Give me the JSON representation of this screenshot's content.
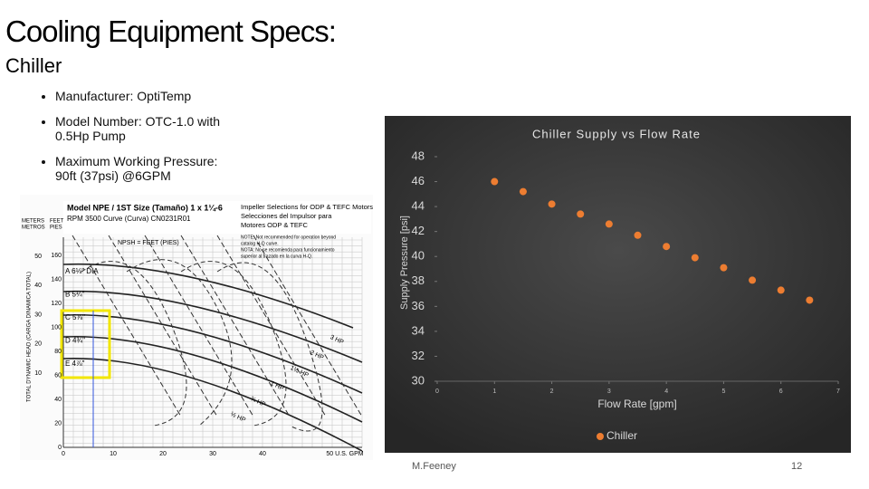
{
  "header": {
    "title": "Cooling Equipment Specs:",
    "subtitle": "Chiller"
  },
  "bullets": [
    "Manufacturer: OptiTemp",
    "Model Number: OTC-1.0 with 0.5Hp Pump",
    "Maximum Working Pressure: 90ft (37psi) @6GPM"
  ],
  "pump_curve": {
    "title_lines": [
      "Model NPE / 1ST Size (Tamaño) 1 x 1¼-6",
      "RPM 3500 Curve (Curva) CN0231R01"
    ],
    "selection_lines": [
      "Impeller Selections for ODP & TEFC Motors",
      "Selecciones del Impulsor para",
      "Motores ODP & TEFC"
    ],
    "notes": [
      "NOTE: Not recommended for operation beyond",
      "catalog H-Q curve.",
      "NOTA: No se recomienda para funcionamiento",
      "superior al trazado en la curva H-Q."
    ],
    "npsh": "NPSH = FEET (PIES)",
    "units_left": [
      "METERS",
      "METROS"
    ],
    "units_right": [
      "FEET",
      "PIES"
    ],
    "y_axis": "TOTAL DYNAMIC HEAD (CARGA DINAMICA TOTAL)",
    "feet_ticks": [
      "160",
      "140",
      "120",
      "100",
      "80",
      "60",
      "40",
      "20",
      "0"
    ],
    "meter_ticks": [
      "50",
      "40",
      "30",
      "20",
      "10"
    ],
    "x_ticks": [
      "0",
      "10",
      "20",
      "30",
      "40",
      "50 U.S. GPM"
    ],
    "impellers": [
      "A 6⅛\" DIA",
      "B 5¼\"",
      "C 5⅞\"",
      "D 4¾\"",
      "E 4⅞\""
    ],
    "hp": [
      "3 HP",
      "2 HP",
      "1½ HP",
      "1 HP",
      "¾ HP",
      "½ HP"
    ]
  },
  "chart_data": {
    "type": "scatter",
    "title": "Chiller Supply vs Flow Rate",
    "x_label": "Flow Rate [gpm]",
    "y_label": "Supply Pressure [psi]",
    "series": [
      {
        "name": "Chiller",
        "color": "#ed7d31",
        "x": [
          1,
          1.5,
          2,
          2.5,
          3,
          3.5,
          4,
          4.5,
          5,
          5.5,
          6,
          6.5
        ],
        "values": [
          46,
          45.2,
          44.2,
          43.4,
          42.6,
          41.7,
          40.8,
          39.9,
          39.1,
          38.1,
          37.3,
          36.5
        ]
      }
    ],
    "xlim": [
      0,
      7
    ],
    "xticks": [
      0,
      1,
      2,
      3,
      4,
      5,
      6,
      7
    ],
    "ylim": [
      30,
      48
    ],
    "yticks": [
      30,
      32,
      34,
      36,
      38,
      40,
      42,
      44,
      46,
      48
    ],
    "legend": "bottom"
  },
  "footer": {
    "author": "M.Feeney",
    "page": "12"
  }
}
